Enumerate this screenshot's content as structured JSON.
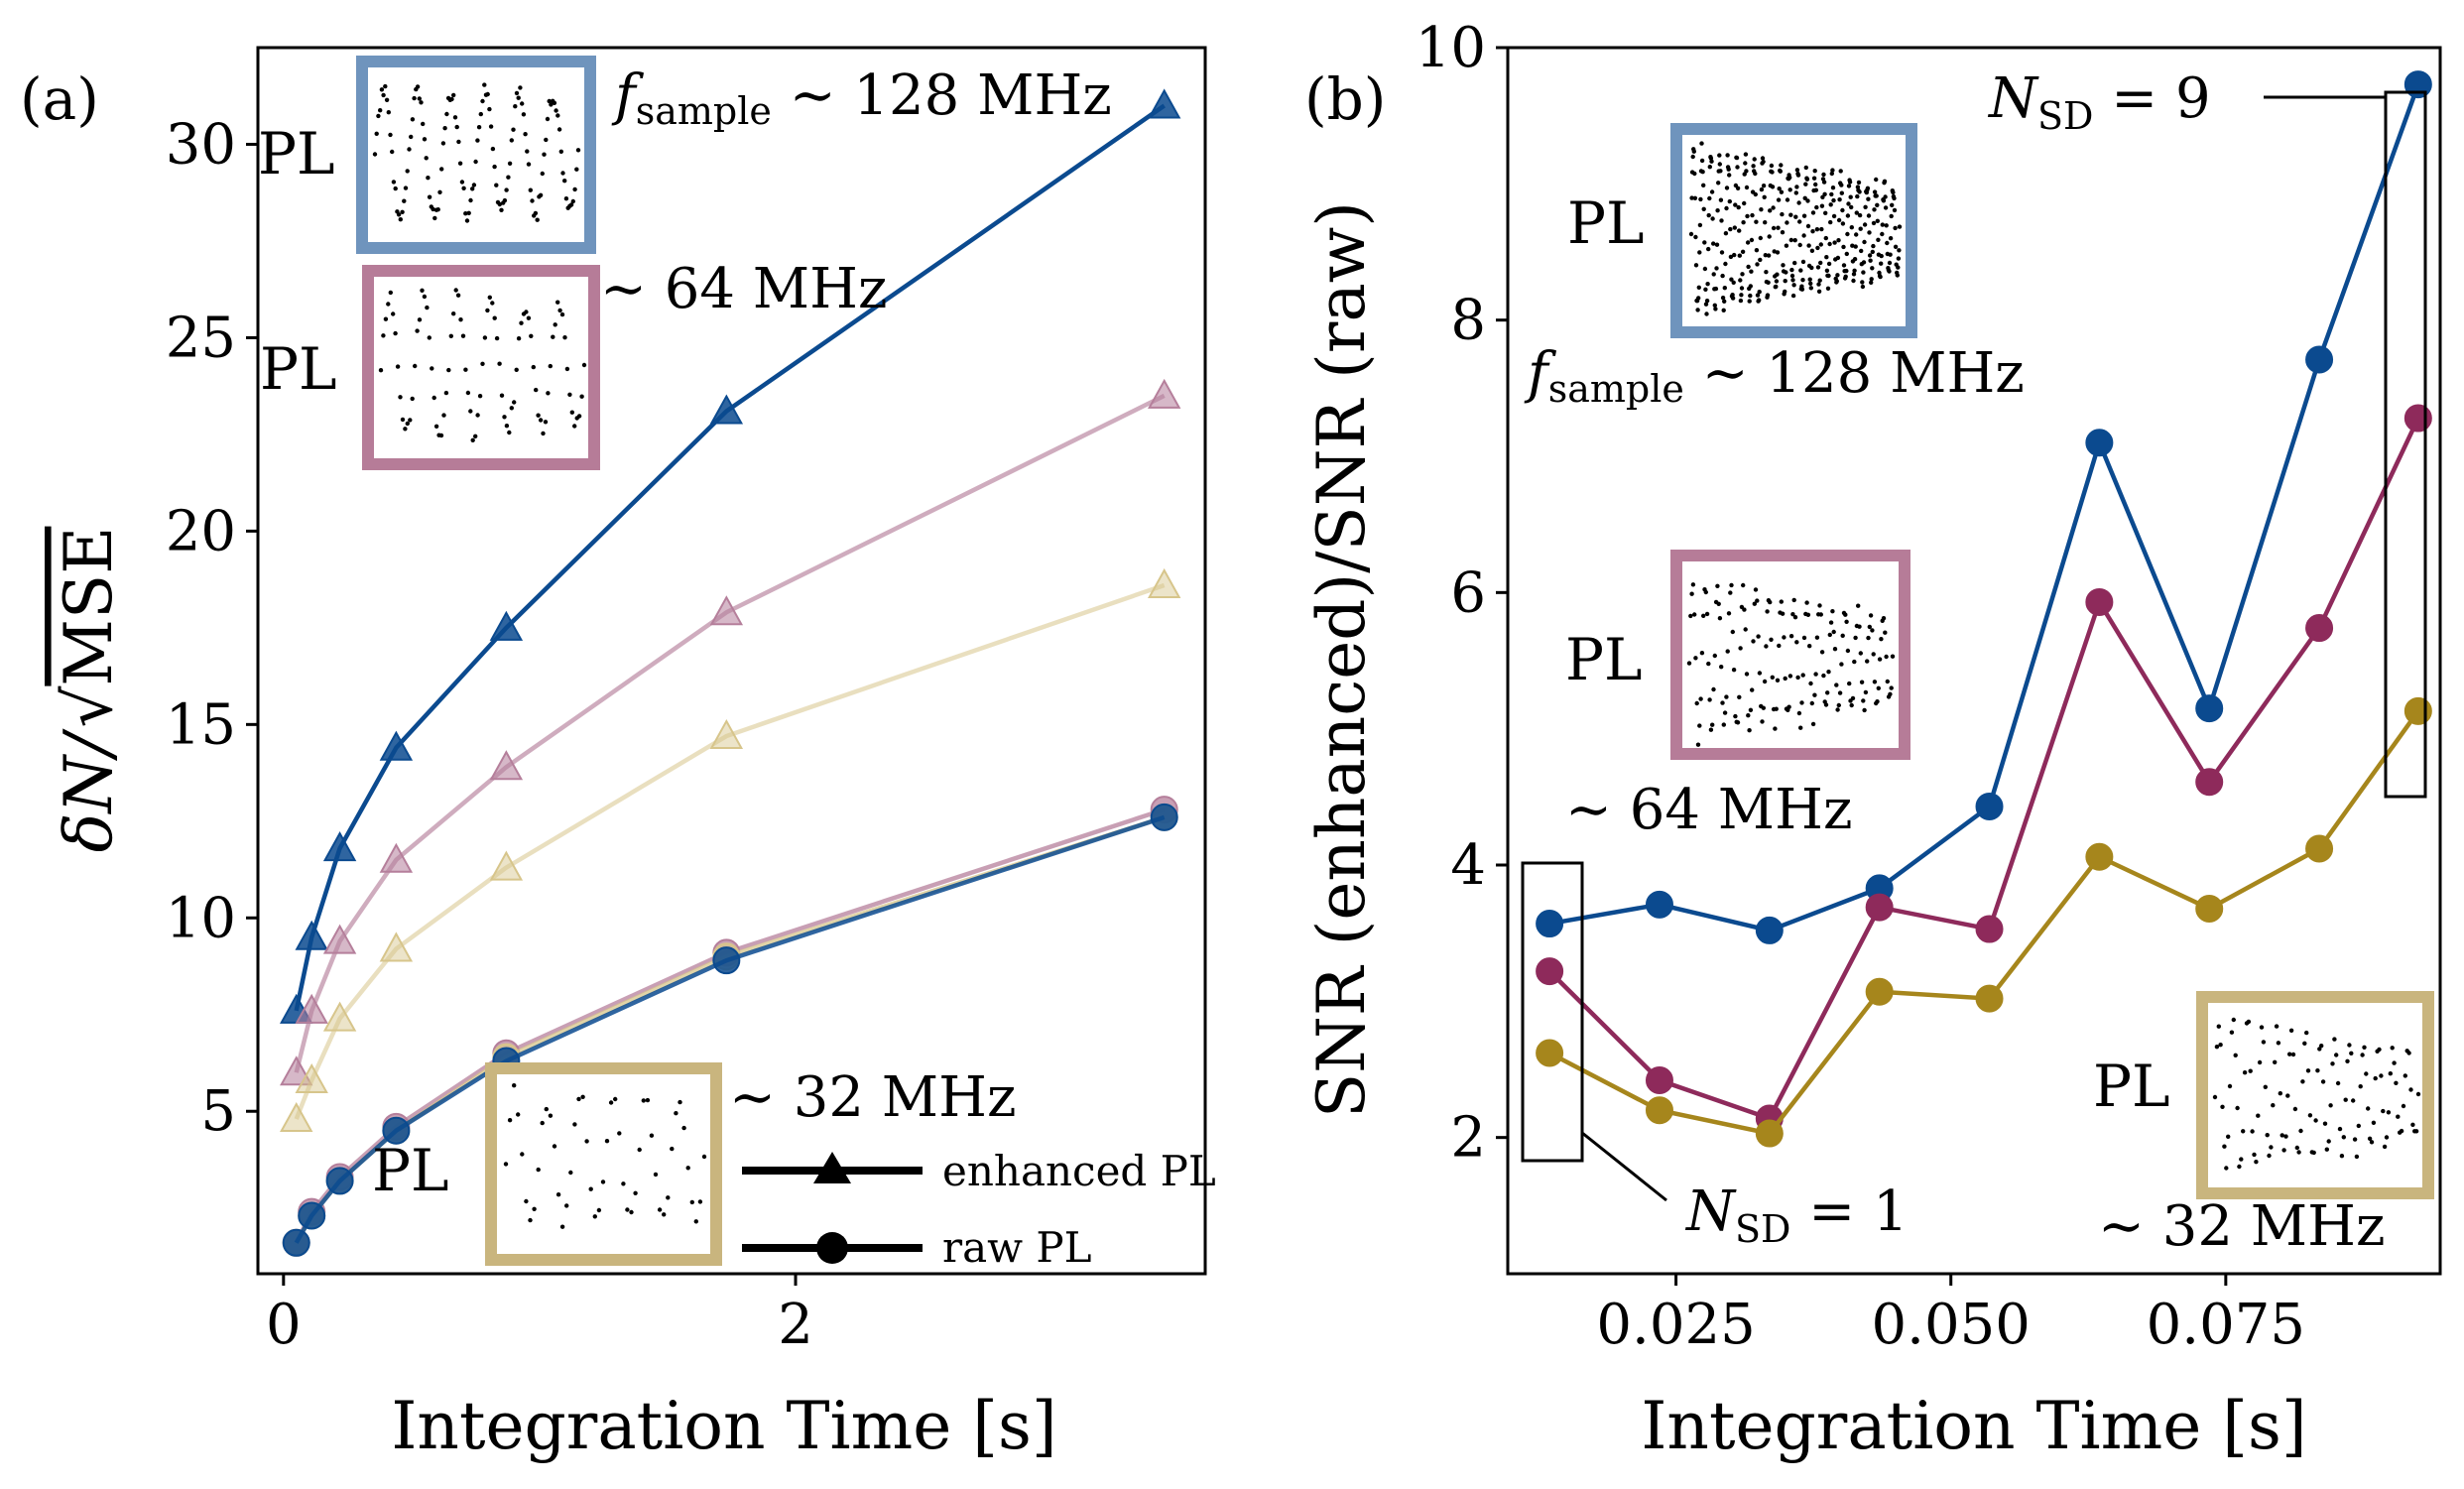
{
  "colors": {
    "s128": "#0b4a8f",
    "s64": "#b57f9b",
    "s32": "#d7c58b",
    "s64b": "#8e2a5b",
    "s32b": "#a6861c",
    "frame128": "#6f94bd",
    "frame64": "#b67c98",
    "frame32": "#c9b57e"
  },
  "chart_data": [
    {
      "panel": "(a)",
      "type": "line",
      "xlabel": "Integration Time [s]",
      "ylabel": "δN/√MSE",
      "xlim": [
        -0.1,
        3.6
      ],
      "ylim": [
        0.8,
        32.5
      ],
      "xticks": [
        0,
        2
      ],
      "yticks": [
        5,
        10,
        15,
        20,
        25,
        30
      ],
      "x": [
        0.05,
        0.11,
        0.22,
        0.44,
        0.87,
        1.73,
        3.44
      ],
      "series": [
        {
          "name": "enhanced PL",
          "marker": "triangle",
          "color": "#0b4a8f",
          "values": [
            7.6,
            9.5,
            11.8,
            14.4,
            17.5,
            23.1,
            31.0
          ]
        },
        {
          "marker": "triangle",
          "color": "#b57f9b",
          "values": [
            6.0,
            7.6,
            9.4,
            11.5,
            13.9,
            17.9,
            23.5
          ]
        },
        {
          "marker": "triangle",
          "color": "#d7c58b",
          "values": [
            4.8,
            5.8,
            7.4,
            9.2,
            11.3,
            14.7,
            18.6
          ]
        },
        {
          "name": "raw PL",
          "marker": "circle",
          "color": "#b57f9b",
          "values": [
            1.6,
            2.4,
            3.3,
            4.6,
            6.5,
            9.1,
            12.8
          ]
        },
        {
          "marker": "circle",
          "color": "#d7c58b",
          "values": [
            1.6,
            2.3,
            3.2,
            4.5,
            6.4,
            9.0,
            12.6
          ]
        },
        {
          "marker": "circle",
          "color": "#0b4a8f",
          "values": [
            1.6,
            2.3,
            3.2,
            4.5,
            6.3,
            8.9,
            12.6
          ]
        }
      ],
      "legend": [
        {
          "label": "enhanced PL",
          "marker": "triangle"
        },
        {
          "label": "raw PL",
          "marker": "circle"
        }
      ],
      "insets": [
        {
          "label": "PL",
          "freq": "f_sample ~ 128 MHz",
          "color": "#6f94bd"
        },
        {
          "label": "PL",
          "freq": "~ 64 MHz",
          "color": "#b67c98"
        },
        {
          "label": "PL",
          "freq": "~ 32 MHz",
          "color": "#c9b57e"
        }
      ]
    },
    {
      "panel": "(b)",
      "type": "line",
      "xlabel": "Integration Time [s]",
      "ylabel": "SNR (enhanced)/SNR (raw)",
      "xlim": [
        0.0097,
        0.0945
      ],
      "ylim": [
        1.0,
        10.0
      ],
      "xticks": [
        0.025,
        0.05,
        0.075
      ],
      "yticks": [
        2,
        4,
        6,
        8,
        10
      ],
      "x": [
        0.0135,
        0.0235,
        0.0335,
        0.0435,
        0.0535,
        0.0635,
        0.0735,
        0.0835,
        0.0925
      ],
      "series": [
        {
          "marker": "circle",
          "color": "#0b4a8f",
          "values": [
            3.57,
            3.71,
            3.52,
            3.83,
            4.43,
            7.1,
            5.15,
            7.71,
            9.73
          ]
        },
        {
          "marker": "circle",
          "color": "#8e2a5b",
          "values": [
            3.22,
            2.42,
            2.14,
            3.69,
            3.53,
            5.93,
            4.61,
            5.74,
            7.28
          ]
        },
        {
          "marker": "circle",
          "color": "#a6861c",
          "values": [
            2.62,
            2.2,
            2.03,
            3.07,
            3.02,
            4.06,
            3.68,
            4.12,
            5.13
          ]
        }
      ],
      "annotations": [
        {
          "text": "N_SD = 9",
          "box": {
            "x": [
              0.0905,
              0.0945
            ],
            "y": [
              4.5,
              10.0
            ]
          }
        },
        {
          "text": "N_SD = 1",
          "box": {
            "x": [
              0.0102,
              0.0155
            ],
            "y": [
              1.8,
              4.0
            ]
          }
        }
      ],
      "insets": [
        {
          "label": "PL",
          "freq": "f_sample ~ 128 MHz",
          "color": "#6f94bd"
        },
        {
          "label": "PL",
          "freq": "~ 64 MHz",
          "color": "#b67c98"
        },
        {
          "label": "PL",
          "freq": "~ 32 MHz",
          "color": "#c9b57e"
        }
      ]
    }
  ],
  "text": {
    "a_panel": "(a)",
    "b_panel": "(b)",
    "a_ylabel_pre": "δN/",
    "a_ylabel_rad": "MSE",
    "xlabel": "Integration Time [s]",
    "b_ylabel": "SNR (enhanced)/SNR (raw)",
    "pl": "PL",
    "f_main": "f",
    "f_sub": "sample",
    "f128_rest": " ∼ 128 MHz",
    "f64": "∼ 64 MHz",
    "f32": "∼ 32 MHz",
    "legend_enh": "enhanced PL",
    "legend_raw": "raw PL",
    "nsd_n": "N",
    "nsd_sub": "SD",
    "nsd9_rest": " = 9",
    "nsd1_rest": " = 1"
  }
}
